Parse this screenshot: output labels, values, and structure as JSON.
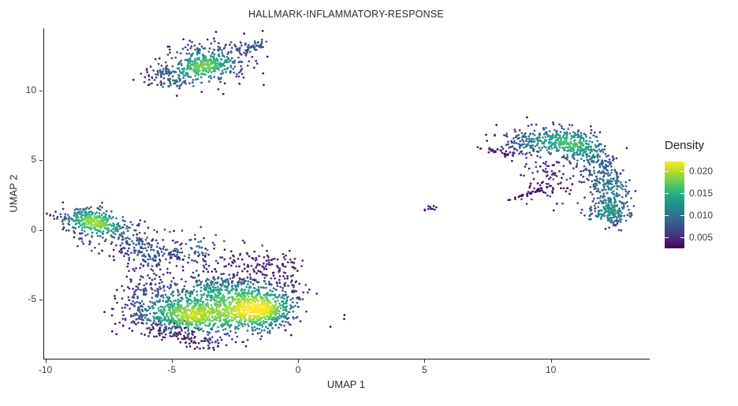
{
  "chart": {
    "title": "HALLMARK-INFLAMMATORY-RESPONSE"
  },
  "axes": {
    "x": {
      "label": "UMAP 1",
      "tick_values": [
        -10,
        -5,
        0,
        5,
        10
      ],
      "tick_labels": [
        "-10",
        "-5",
        "0",
        "5",
        "10"
      ],
      "range": [
        -10.08,
        13.88
      ]
    },
    "y": {
      "label": "UMAP 2",
      "tick_values": [
        -5,
        0,
        5,
        10
      ],
      "tick_labels": [
        "-5",
        "0",
        "5",
        "10"
      ],
      "range": [
        -9.21,
        14.46
      ]
    }
  },
  "legend": {
    "title": "Density",
    "tick_values": [
      0.005,
      0.01,
      0.015,
      0.02
    ],
    "tick_labels": [
      "0.005",
      "0.010",
      "0.015",
      "0.020"
    ],
    "range": [
      0.0025,
      0.0221
    ]
  },
  "colors": {
    "background": "#ffffff",
    "axis_line": "#1c1c1c",
    "tick_text": "#3c3c3c",
    "title_text": "#2b2b2b",
    "viridis": [
      "#440154",
      "#482475",
      "#414487",
      "#355f8d",
      "#2a788e",
      "#21918c",
      "#22a884",
      "#44bf70",
      "#7ad151",
      "#bddf26",
      "#fde725"
    ]
  },
  "chart_data": {
    "type": "scatter",
    "title": "HALLMARK-INFLAMMATORY-RESPONSE",
    "xlabel": "UMAP 1",
    "ylabel": "UMAP 2",
    "xlim": [
      -10.08,
      13.88
    ],
    "ylim": [
      -9.21,
      14.46
    ],
    "grid": false,
    "legend_position": "right",
    "color_scale": {
      "palette": "viridis",
      "variable": "Density",
      "min": 0.0025,
      "max": 0.0221,
      "ticks": [
        0.005,
        0.01,
        0.015,
        0.02
      ]
    },
    "point_radius_px": 1.35,
    "seed": 20,
    "kde_bandwidth": {
      "hx": 0.55,
      "hy": 0.5
    },
    "clusters": [
      {
        "name": "top-left-blob",
        "blobs": [
          {
            "x": -3.6,
            "y": 11.95,
            "sx": 1.0,
            "sy": 0.8,
            "rot": 30,
            "n": 290
          },
          {
            "x": -3.6,
            "y": 11.85,
            "sx": 0.5,
            "sy": 0.4,
            "rot": 30,
            "n": 170
          },
          {
            "x": -1.8,
            "y": 13.1,
            "sx": 0.32,
            "sy": 0.22,
            "rot": 25,
            "n": 45,
            "tint": 0.28,
            "tj": 0.12
          },
          {
            "x": -5.3,
            "y": 11.1,
            "sx": 0.45,
            "sy": 0.35,
            "rot": 30,
            "n": 60
          },
          {
            "x": -4.9,
            "y": 10.6,
            "sx": 0.4,
            "sy": 0.25,
            "rot": 20,
            "n": 20,
            "tint": 0.3,
            "tj": 0.15
          }
        ]
      },
      {
        "name": "right-crescent",
        "blobs": [
          {
            "x": 8.0,
            "y": 5.6,
            "sx": 0.4,
            "sy": 0.15,
            "rot": -20,
            "n": 30,
            "tint": 0.08,
            "tj": 0.05
          },
          {
            "x": 8.7,
            "y": 6.1,
            "sx": 0.5,
            "sy": 0.5,
            "rot": 20,
            "n": 80
          },
          {
            "x": 9.6,
            "y": 6.55,
            "sx": 0.55,
            "sy": 0.5,
            "rot": 5,
            "n": 95
          },
          {
            "x": 10.5,
            "y": 6.55,
            "sx": 0.55,
            "sy": 0.5,
            "rot": -5,
            "n": 100
          },
          {
            "x": 10.9,
            "y": 6.1,
            "sx": 0.4,
            "sy": 0.4,
            "rot": 0,
            "n": 110
          },
          {
            "x": 11.5,
            "y": 5.6,
            "sx": 0.45,
            "sy": 0.55,
            "rot": 30,
            "n": 90
          },
          {
            "x": 12.0,
            "y": 4.5,
            "sx": 0.38,
            "sy": 0.6,
            "rot": 10,
            "n": 80
          },
          {
            "x": 12.25,
            "y": 3.3,
            "sx": 0.4,
            "sy": 0.6,
            "rot": 0,
            "n": 80
          },
          {
            "x": 12.3,
            "y": 2.1,
            "sx": 0.45,
            "sy": 0.55,
            "rot": 0,
            "n": 90
          },
          {
            "x": 12.25,
            "y": 1.2,
            "sx": 0.5,
            "sy": 0.45,
            "rot": -20,
            "n": 90
          },
          {
            "x": 12.3,
            "y": 1.5,
            "sx": 0.3,
            "sy": 0.35,
            "rot": 0,
            "n": 55
          },
          {
            "x": 10.7,
            "y": 4.2,
            "sx": 0.9,
            "sy": 1.1,
            "rot": 25,
            "n": 90,
            "w": 0.55
          },
          {
            "x": 9.9,
            "y": 3.1,
            "sx": 0.8,
            "sy": 0.9,
            "rot": 0,
            "n": 30,
            "tint": 0.15,
            "tj": 0.08
          },
          {
            "x": 9.25,
            "y": 2.7,
            "sx": 0.42,
            "sy": 0.05,
            "rot": 31,
            "n": 40,
            "tint": 0.06,
            "tj": 0.02
          },
          {
            "x": 9.8,
            "y": 4.4,
            "sx": 0.5,
            "sy": 0.6,
            "rot": 0,
            "n": 16,
            "tint": 0.16,
            "tj": 0.07
          },
          {
            "x": 12.6,
            "y": 0.45,
            "sx": 0.15,
            "sy": 0.25,
            "rot": 0,
            "n": 14,
            "tint": 0.24,
            "tj": 0.1
          }
        ]
      },
      {
        "name": "small-center-clump",
        "blobs": [
          {
            "x": 5.2,
            "y": 1.55,
            "sx": 0.16,
            "sy": 0.09,
            "rot": 10,
            "n": 10,
            "tint": 0.04,
            "tj": 0.02
          }
        ]
      },
      {
        "name": "bottom-left-mass",
        "blobs": [
          {
            "x": -7.85,
            "y": 0.45,
            "sx": 0.85,
            "sy": 0.45,
            "rot": -25,
            "n": 270
          },
          {
            "x": -8.25,
            "y": 0.75,
            "sx": 0.5,
            "sy": 0.28,
            "rot": -25,
            "n": 120
          },
          {
            "x": -6.2,
            "y": -1.5,
            "sx": 0.85,
            "sy": 0.6,
            "rot": -52,
            "n": 170,
            "w": 0.85
          },
          {
            "x": -8.0,
            "y": -0.75,
            "sx": 0.55,
            "sy": 0.3,
            "rot": -20,
            "n": 22,
            "tint": 0.22,
            "tj": 0.12
          },
          {
            "x": -4.6,
            "y": -1.5,
            "sx": 0.9,
            "sy": 0.7,
            "rot": -20,
            "n": 70,
            "tint": 0.3,
            "tj": 0.12
          },
          {
            "x": -3.3,
            "y": -2.3,
            "sx": 1.0,
            "sy": 0.8,
            "rot": -10,
            "n": 85,
            "tint": 0.1,
            "tj": 0.06
          },
          {
            "x": -4.4,
            "y": -5.7,
            "sx": 1.05,
            "sy": 0.95,
            "rot": 10,
            "n": 520
          },
          {
            "x": -4.45,
            "y": -6.15,
            "sx": 0.5,
            "sy": 0.45,
            "rot": 0,
            "n": 170
          },
          {
            "x": -1.8,
            "y": -5.4,
            "sx": 1.05,
            "sy": 1.0,
            "rot": -15,
            "n": 560
          },
          {
            "x": -1.45,
            "y": -5.8,
            "sx": 0.55,
            "sy": 0.45,
            "rot": -10,
            "n": 260
          },
          {
            "x": -3.0,
            "y": -4.3,
            "sx": 0.8,
            "sy": 0.55,
            "rot": 0,
            "n": 150
          },
          {
            "x": -3.1,
            "y": -6.2,
            "sx": 0.5,
            "sy": 0.4,
            "rot": 0,
            "n": 90
          },
          {
            "x": -1.2,
            "y": -2.6,
            "sx": 0.7,
            "sy": 0.55,
            "rot": -15,
            "n": 80,
            "tint": 0.1,
            "tj": 0.06
          },
          {
            "x": -5.3,
            "y": -7.15,
            "sx": 0.8,
            "sy": 0.35,
            "rot": -8,
            "n": 65,
            "tint": 0.08,
            "tj": 0.06
          },
          {
            "x": -4.3,
            "y": -7.9,
            "sx": 0.28,
            "sy": 0.3,
            "rot": 0,
            "n": 28,
            "tint": 0.07,
            "tj": 0.04
          },
          {
            "x": -3.3,
            "y": -8.0,
            "sx": 0.25,
            "sy": 0.3,
            "rot": 0,
            "n": 22,
            "tint": 0.13,
            "tj": 0.09
          },
          {
            "x": -6.3,
            "y": -6.0,
            "sx": 0.45,
            "sy": 0.6,
            "rot": 20,
            "n": 60,
            "w": 0.8
          },
          {
            "x": -5.9,
            "y": -4.2,
            "sx": 0.5,
            "sy": 0.6,
            "rot": 0,
            "n": 70,
            "w": 0.8
          },
          {
            "x": -0.35,
            "y": -3.7,
            "sx": 0.3,
            "sy": 0.5,
            "rot": 0,
            "n": 26,
            "tint": 0.13,
            "tj": 0.07
          }
        ]
      }
    ]
  }
}
